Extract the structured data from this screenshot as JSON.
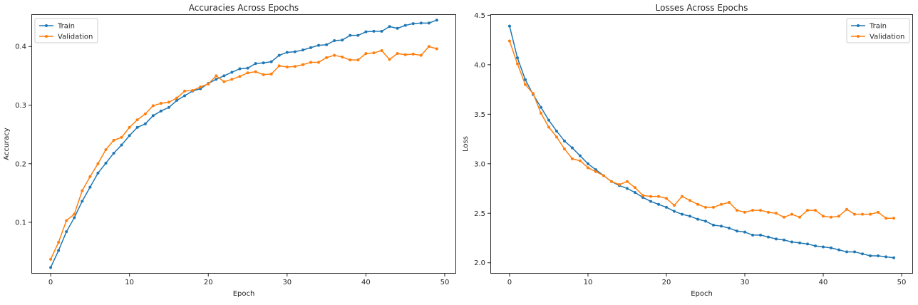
{
  "chart_data": [
    {
      "type": "line",
      "title": "Accuracies Across Epochs",
      "xlabel": "Epoch",
      "ylabel": "Accuracy",
      "xlim": [
        -2.45,
        51.45
      ],
      "ylim": [
        0.0125,
        0.455
      ],
      "xticks": [
        0,
        10,
        20,
        30,
        40,
        50
      ],
      "yticks": [
        0.1,
        0.2,
        0.3,
        0.4
      ],
      "ytick_labels": [
        "0.1",
        "0.2",
        "0.3",
        "0.4"
      ],
      "grid": false,
      "legend": "upper-left",
      "x": [
        0,
        1,
        2,
        3,
        4,
        5,
        6,
        7,
        8,
        9,
        10,
        11,
        12,
        13,
        14,
        15,
        16,
        17,
        18,
        19,
        20,
        21,
        22,
        23,
        24,
        25,
        26,
        27,
        28,
        29,
        30,
        31,
        32,
        33,
        34,
        35,
        36,
        37,
        38,
        39,
        40,
        41,
        42,
        43,
        44,
        45,
        46,
        47,
        48,
        49
      ],
      "series": [
        {
          "name": "Train",
          "color": "#1f77b4",
          "values": [
            0.023,
            0.052,
            0.084,
            0.108,
            0.136,
            0.16,
            0.184,
            0.201,
            0.218,
            0.232,
            0.248,
            0.262,
            0.268,
            0.282,
            0.29,
            0.296,
            0.308,
            0.316,
            0.324,
            0.328,
            0.337,
            0.344,
            0.35,
            0.356,
            0.362,
            0.363,
            0.371,
            0.372,
            0.374,
            0.385,
            0.39,
            0.391,
            0.394,
            0.398,
            0.402,
            0.403,
            0.41,
            0.411,
            0.419,
            0.419,
            0.425,
            0.426,
            0.426,
            0.434,
            0.431,
            0.436,
            0.439,
            0.44,
            0.44,
            0.445
          ]
        },
        {
          "name": "Validation",
          "color": "#ff7f0e",
          "values": [
            0.037,
            0.066,
            0.103,
            0.114,
            0.154,
            0.178,
            0.2,
            0.224,
            0.24,
            0.245,
            0.262,
            0.275,
            0.285,
            0.299,
            0.303,
            0.305,
            0.312,
            0.324,
            0.325,
            0.331,
            0.336,
            0.35,
            0.34,
            0.344,
            0.349,
            0.355,
            0.357,
            0.352,
            0.353,
            0.367,
            0.365,
            0.366,
            0.369,
            0.373,
            0.373,
            0.381,
            0.385,
            0.382,
            0.377,
            0.377,
            0.388,
            0.389,
            0.393,
            0.378,
            0.388,
            0.386,
            0.387,
            0.385,
            0.4,
            0.396
          ]
        }
      ]
    },
    {
      "type": "line",
      "title": "Losses Across Epochs",
      "xlabel": "Epoch",
      "ylabel": "Loss",
      "xlim": [
        -2.45,
        51.45
      ],
      "ylim": [
        1.89,
        4.51
      ],
      "xticks": [
        0,
        10,
        20,
        30,
        40,
        50
      ],
      "yticks": [
        2.0,
        2.5,
        3.0,
        3.5,
        4.0,
        4.5
      ],
      "ytick_labels": [
        "2.0",
        "2.5",
        "3.0",
        "3.5",
        "4.0",
        "4.5"
      ],
      "grid": false,
      "legend": "upper-right",
      "x": [
        0,
        1,
        2,
        3,
        4,
        5,
        6,
        7,
        8,
        9,
        10,
        11,
        12,
        13,
        14,
        15,
        16,
        17,
        18,
        19,
        20,
        21,
        22,
        23,
        24,
        25,
        26,
        27,
        28,
        29,
        30,
        31,
        32,
        33,
        34,
        35,
        36,
        37,
        38,
        39,
        40,
        41,
        42,
        43,
        44,
        45,
        46,
        47,
        48,
        49
      ],
      "series": [
        {
          "name": "Train",
          "color": "#1f77b4",
          "values": [
            4.39,
            4.07,
            3.85,
            3.7,
            3.57,
            3.44,
            3.33,
            3.23,
            3.16,
            3.08,
            3.0,
            2.94,
            2.88,
            2.82,
            2.78,
            2.75,
            2.71,
            2.66,
            2.62,
            2.59,
            2.56,
            2.52,
            2.49,
            2.47,
            2.44,
            2.42,
            2.38,
            2.37,
            2.35,
            2.32,
            2.31,
            2.28,
            2.28,
            2.26,
            2.24,
            2.23,
            2.21,
            2.2,
            2.19,
            2.17,
            2.16,
            2.15,
            2.13,
            2.11,
            2.11,
            2.09,
            2.07,
            2.07,
            2.06,
            2.05
          ]
        },
        {
          "name": "Validation",
          "color": "#ff7f0e",
          "values": [
            4.24,
            4.01,
            3.8,
            3.71,
            3.51,
            3.37,
            3.27,
            3.15,
            3.05,
            3.03,
            2.96,
            2.92,
            2.88,
            2.82,
            2.79,
            2.82,
            2.76,
            2.68,
            2.67,
            2.67,
            2.65,
            2.58,
            2.67,
            2.63,
            2.59,
            2.56,
            2.56,
            2.59,
            2.61,
            2.53,
            2.51,
            2.53,
            2.53,
            2.51,
            2.5,
            2.46,
            2.49,
            2.46,
            2.53,
            2.53,
            2.47,
            2.46,
            2.47,
            2.54,
            2.49,
            2.49,
            2.49,
            2.51,
            2.45,
            2.45
          ]
        }
      ]
    }
  ]
}
